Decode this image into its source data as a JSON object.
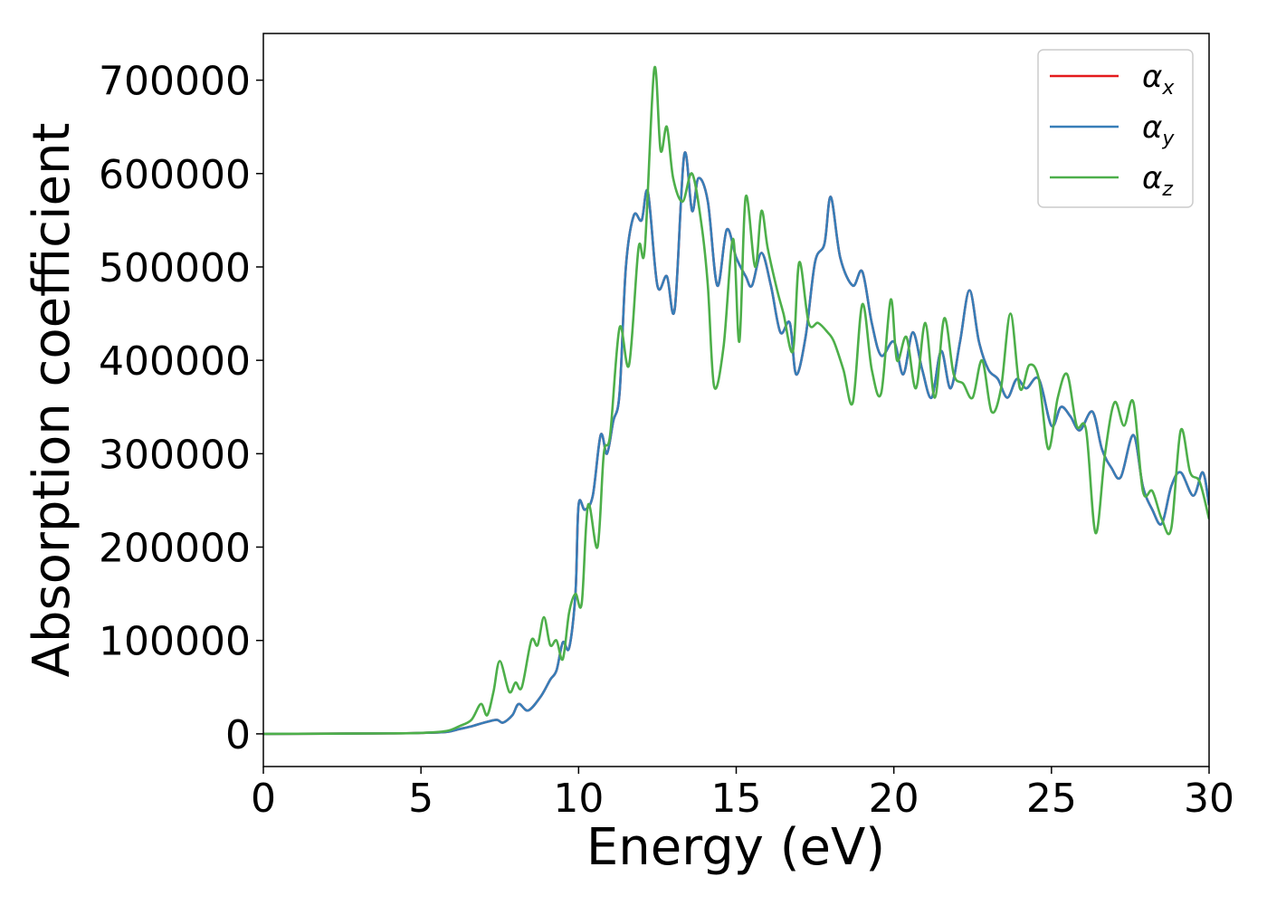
{
  "chart_data": {
    "type": "line",
    "xlabel": "Energy (eV)",
    "ylabel": "Absorption coefficient",
    "xlim": [
      0,
      30
    ],
    "ylim": [
      -35000,
      750000
    ],
    "xticks": [
      0,
      5,
      10,
      15,
      20,
      25,
      30
    ],
    "yticks": [
      0,
      100000,
      200000,
      300000,
      400000,
      500000,
      600000,
      700000
    ],
    "xtick_labels": [
      "0",
      "5",
      "10",
      "15",
      "20",
      "25",
      "30"
    ],
    "ytick_labels": [
      "0",
      "100000",
      "200000",
      "300000",
      "400000",
      "500000",
      "600000",
      "700000"
    ],
    "grid": false,
    "legend_placement": "top-right",
    "series": [
      {
        "name": "αx",
        "symbol": "α",
        "subscript": "x",
        "color": "#e41a1c",
        "x": [
          0,
          4,
          5,
          5.8,
          6.2,
          6.6,
          7.0,
          7.4,
          7.6,
          7.9,
          8.1,
          8.4,
          8.8,
          9.1,
          9.3,
          9.5,
          9.7,
          9.9,
          10.0,
          10.2,
          10.45,
          10.7,
          10.9,
          11.1,
          11.3,
          11.5,
          11.75,
          12.0,
          12.2,
          12.5,
          12.8,
          13.05,
          13.35,
          13.6,
          13.8,
          14.1,
          14.4,
          14.7,
          15.0,
          15.3,
          15.5,
          15.8,
          16.1,
          16.4,
          16.7,
          16.9,
          17.2,
          17.5,
          17.8,
          18.0,
          18.3,
          18.7,
          19.0,
          19.3,
          19.6,
          20.0,
          20.3,
          20.6,
          20.9,
          21.2,
          21.5,
          21.8,
          22.1,
          22.4,
          22.7,
          23.0,
          23.3,
          23.6,
          23.9,
          24.2,
          24.6,
          25.0,
          25.3,
          25.6,
          25.9,
          26.3,
          26.6,
          26.9,
          27.2,
          27.6,
          27.9,
          28.2,
          28.5,
          28.8,
          29.1,
          29.5,
          29.8,
          30.0
        ],
        "values": [
          0,
          500,
          1000,
          2000,
          5000,
          8000,
          12000,
          15000,
          12000,
          20000,
          32000,
          25000,
          40000,
          58000,
          68000,
          98000,
          92000,
          150000,
          245000,
          240000,
          255000,
          320000,
          300000,
          335000,
          365000,
          500000,
          555000,
          550000,
          580000,
          480000,
          490000,
          455000,
          620000,
          560000,
          595000,
          570000,
          480000,
          540000,
          510000,
          490000,
          480000,
          515000,
          480000,
          430000,
          440000,
          385000,
          425000,
          505000,
          525000,
          575000,
          510000,
          480000,
          495000,
          440000,
          405000,
          420000,
          385000,
          430000,
          390000,
          360000,
          410000,
          370000,
          420000,
          475000,
          420000,
          390000,
          380000,
          360000,
          380000,
          370000,
          380000,
          330000,
          350000,
          340000,
          325000,
          345000,
          305000,
          285000,
          275000,
          320000,
          265000,
          240000,
          225000,
          265000,
          280000,
          255000,
          280000,
          245000
        ]
      },
      {
        "name": "αy",
        "symbol": "α",
        "subscript": "y",
        "color": "#377eb8",
        "x": [
          0,
          4,
          5,
          5.8,
          6.2,
          6.6,
          7.0,
          7.4,
          7.6,
          7.9,
          8.1,
          8.4,
          8.8,
          9.1,
          9.3,
          9.5,
          9.7,
          9.9,
          10.0,
          10.2,
          10.45,
          10.7,
          10.9,
          11.1,
          11.3,
          11.5,
          11.75,
          12.0,
          12.2,
          12.5,
          12.8,
          13.05,
          13.35,
          13.6,
          13.8,
          14.1,
          14.4,
          14.7,
          15.0,
          15.3,
          15.5,
          15.8,
          16.1,
          16.4,
          16.7,
          16.9,
          17.2,
          17.5,
          17.8,
          18.0,
          18.3,
          18.7,
          19.0,
          19.3,
          19.6,
          20.0,
          20.3,
          20.6,
          20.9,
          21.2,
          21.5,
          21.8,
          22.1,
          22.4,
          22.7,
          23.0,
          23.3,
          23.6,
          23.9,
          24.2,
          24.6,
          25.0,
          25.3,
          25.6,
          25.9,
          26.3,
          26.6,
          26.9,
          27.2,
          27.6,
          27.9,
          28.2,
          28.5,
          28.8,
          29.1,
          29.5,
          29.8,
          30.0
        ],
        "values": [
          0,
          500,
          1000,
          2000,
          5000,
          8000,
          12000,
          15000,
          12000,
          20000,
          32000,
          25000,
          40000,
          58000,
          68000,
          98000,
          92000,
          150000,
          245000,
          240000,
          255000,
          320000,
          300000,
          335000,
          365000,
          500000,
          555000,
          550000,
          580000,
          480000,
          490000,
          455000,
          620000,
          560000,
          595000,
          570000,
          480000,
          540000,
          510000,
          490000,
          480000,
          515000,
          480000,
          430000,
          440000,
          385000,
          425000,
          505000,
          525000,
          575000,
          510000,
          480000,
          495000,
          440000,
          405000,
          420000,
          385000,
          430000,
          390000,
          360000,
          410000,
          370000,
          420000,
          475000,
          420000,
          390000,
          380000,
          360000,
          380000,
          370000,
          380000,
          330000,
          350000,
          340000,
          325000,
          345000,
          305000,
          285000,
          275000,
          320000,
          265000,
          240000,
          225000,
          265000,
          280000,
          255000,
          280000,
          245000
        ]
      },
      {
        "name": "αz",
        "symbol": "α",
        "subscript": "z",
        "color": "#4daf4a",
        "x": [
          0,
          4,
          5,
          5.8,
          6.2,
          6.6,
          6.9,
          7.1,
          7.3,
          7.5,
          7.8,
          8.0,
          8.2,
          8.5,
          8.7,
          8.9,
          9.1,
          9.3,
          9.5,
          9.7,
          9.9,
          10.1,
          10.3,
          10.6,
          10.8,
          11.0,
          11.3,
          11.6,
          11.9,
          12.1,
          12.4,
          12.6,
          12.8,
          13.0,
          13.3,
          13.6,
          13.9,
          14.1,
          14.3,
          14.6,
          14.9,
          15.1,
          15.3,
          15.6,
          15.8,
          16.0,
          16.3,
          16.5,
          16.8,
          17.0,
          17.3,
          17.6,
          17.9,
          18.1,
          18.4,
          18.7,
          19.0,
          19.3,
          19.6,
          19.9,
          20.1,
          20.4,
          20.7,
          21.0,
          21.3,
          21.6,
          21.9,
          22.2,
          22.5,
          22.8,
          23.1,
          23.4,
          23.7,
          24.0,
          24.3,
          24.6,
          24.9,
          25.2,
          25.5,
          25.8,
          26.1,
          26.4,
          26.7,
          27.0,
          27.3,
          27.6,
          27.9,
          28.2,
          28.5,
          28.8,
          29.1,
          29.4,
          29.7,
          30.0
        ],
        "values": [
          0,
          500,
          1000,
          3000,
          8000,
          15000,
          32000,
          20000,
          45000,
          78000,
          45000,
          55000,
          50000,
          100000,
          95000,
          125000,
          95000,
          100000,
          80000,
          130000,
          150000,
          140000,
          245000,
          200000,
          300000,
          320000,
          435000,
          395000,
          520000,
          520000,
          712000,
          625000,
          650000,
          595000,
          570000,
          600000,
          545000,
          480000,
          372000,
          415000,
          530000,
          420000,
          575000,
          500000,
          560000,
          520000,
          475000,
          450000,
          410000,
          505000,
          440000,
          440000,
          430000,
          420000,
          390000,
          355000,
          460000,
          390000,
          365000,
          465000,
          400000,
          425000,
          370000,
          440000,
          360000,
          445000,
          385000,
          375000,
          360000,
          400000,
          345000,
          370000,
          450000,
          370000,
          395000,
          380000,
          305000,
          360000,
          385000,
          330000,
          325000,
          215000,
          300000,
          355000,
          330000,
          355000,
          260000,
          260000,
          230000,
          220000,
          325000,
          280000,
          270000,
          230000
        ]
      }
    ]
  }
}
